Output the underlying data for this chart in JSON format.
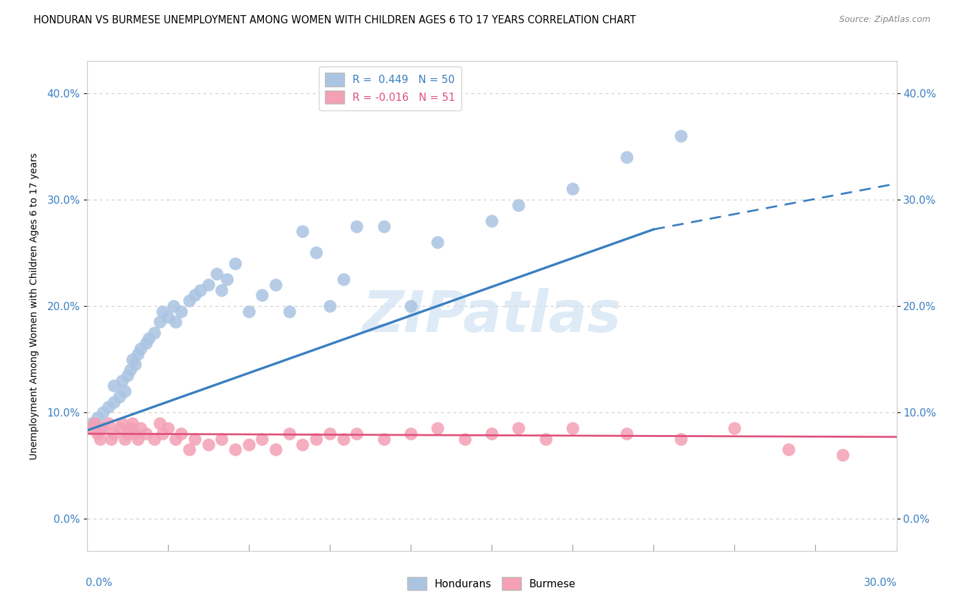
{
  "title": "HONDURAN VS BURMESE UNEMPLOYMENT AMONG WOMEN WITH CHILDREN AGES 6 TO 17 YEARS CORRELATION CHART",
  "source": "Source: ZipAtlas.com",
  "ylabel": "Unemployment Among Women with Children Ages 6 to 17 years",
  "xlim": [
    0.0,
    0.3
  ],
  "ylim": [
    -0.03,
    0.43
  ],
  "yticks": [
    0.0,
    0.1,
    0.2,
    0.3,
    0.4
  ],
  "r_honduran": 0.449,
  "n_honduran": 50,
  "r_burmese": -0.016,
  "n_burmese": 51,
  "honduran_color": "#aac4e2",
  "burmese_color": "#f4a0b5",
  "trend_honduran_color": "#3a7fc1",
  "trend_burmese_color": "#e0507a",
  "watermark": "ZIPatlas",
  "honduran_x": [
    0.002,
    0.004,
    0.005,
    0.006,
    0.008,
    0.01,
    0.01,
    0.012,
    0.013,
    0.014,
    0.015,
    0.016,
    0.017,
    0.018,
    0.019,
    0.02,
    0.022,
    0.023,
    0.025,
    0.027,
    0.028,
    0.03,
    0.032,
    0.033,
    0.035,
    0.038,
    0.04,
    0.042,
    0.045,
    0.048,
    0.05,
    0.052,
    0.055,
    0.06,
    0.065,
    0.07,
    0.075,
    0.08,
    0.085,
    0.09,
    0.095,
    0.1,
    0.11,
    0.12,
    0.13,
    0.15,
    0.16,
    0.18,
    0.2,
    0.22
  ],
  "honduran_y": [
    0.09,
    0.095,
    0.085,
    0.1,
    0.105,
    0.11,
    0.125,
    0.115,
    0.13,
    0.12,
    0.135,
    0.14,
    0.15,
    0.145,
    0.155,
    0.16,
    0.165,
    0.17,
    0.175,
    0.185,
    0.195,
    0.19,
    0.2,
    0.185,
    0.195,
    0.205,
    0.21,
    0.215,
    0.22,
    0.23,
    0.215,
    0.225,
    0.24,
    0.195,
    0.21,
    0.22,
    0.195,
    0.27,
    0.25,
    0.2,
    0.225,
    0.275,
    0.275,
    0.2,
    0.26,
    0.28,
    0.295,
    0.31,
    0.34,
    0.36
  ],
  "burmese_x": [
    0.002,
    0.003,
    0.004,
    0.005,
    0.006,
    0.008,
    0.009,
    0.01,
    0.012,
    0.013,
    0.014,
    0.015,
    0.016,
    0.017,
    0.018,
    0.019,
    0.02,
    0.022,
    0.025,
    0.027,
    0.028,
    0.03,
    0.033,
    0.035,
    0.038,
    0.04,
    0.045,
    0.05,
    0.055,
    0.06,
    0.065,
    0.07,
    0.075,
    0.08,
    0.085,
    0.09,
    0.095,
    0.1,
    0.11,
    0.12,
    0.13,
    0.14,
    0.15,
    0.16,
    0.17,
    0.18,
    0.2,
    0.22,
    0.24,
    0.26,
    0.28
  ],
  "burmese_y": [
    0.085,
    0.09,
    0.08,
    0.075,
    0.085,
    0.09,
    0.075,
    0.08,
    0.085,
    0.09,
    0.075,
    0.08,
    0.085,
    0.09,
    0.08,
    0.075,
    0.085,
    0.08,
    0.075,
    0.09,
    0.08,
    0.085,
    0.075,
    0.08,
    0.065,
    0.075,
    0.07,
    0.075,
    0.065,
    0.07,
    0.075,
    0.065,
    0.08,
    0.07,
    0.075,
    0.08,
    0.075,
    0.08,
    0.075,
    0.08,
    0.085,
    0.075,
    0.08,
    0.085,
    0.075,
    0.085,
    0.08,
    0.075,
    0.085,
    0.065,
    0.06
  ],
  "hon_trend_x0": 0.0,
  "hon_trend_y0": 0.083,
  "hon_trend_x1": 0.21,
  "hon_trend_y1": 0.272,
  "hon_trend_dash_x1": 0.3,
  "hon_trend_dash_y1": 0.315,
  "bur_trend_x0": 0.0,
  "bur_trend_y0": 0.08,
  "bur_trend_x1": 0.3,
  "bur_trend_y1": 0.077
}
